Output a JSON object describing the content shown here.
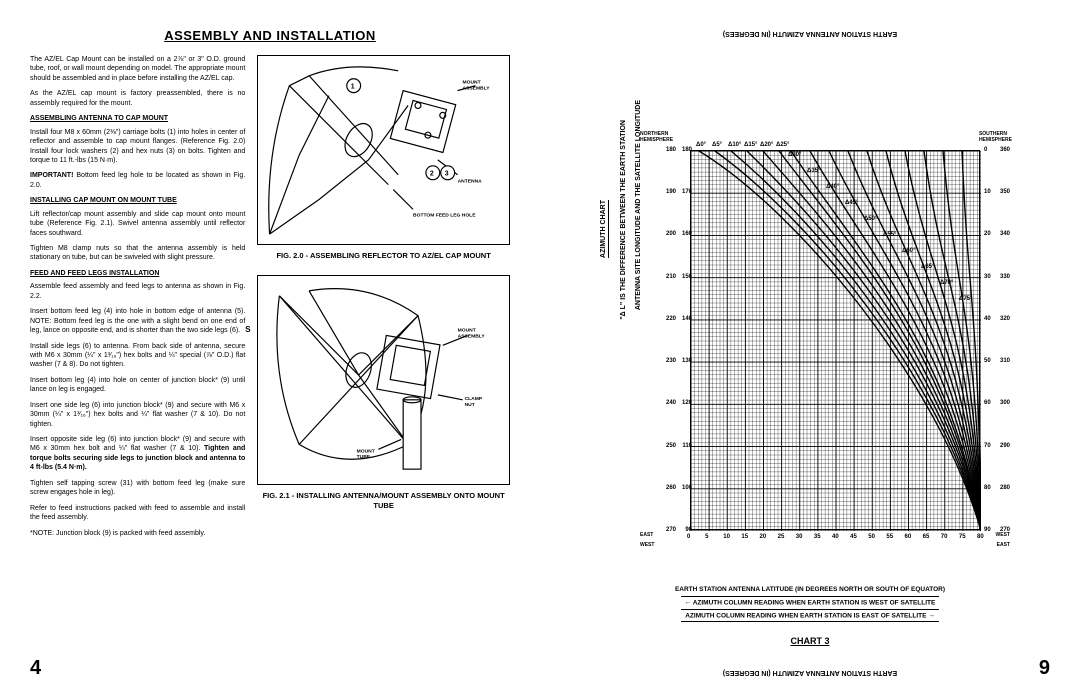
{
  "leftPage": {
    "title": "ASSEMBLY AND INSTALLATION",
    "pageNumber": "4",
    "paragraphs": {
      "intro1": "The AZ/EL Cap Mount can be installed on a 2⅞\" or 3\" O.D. ground tube, roof, or wall mount depending on model. The appropriate mount should be assembled and in place before installing the AZ/EL cap.",
      "intro2": "As the AZ/EL cap mount is factory preassembled, there is no assembly required for the mount.",
      "h1": "ASSEMBLING ANTENNA TO CAP MOUNT",
      "p1": "Install four M8 x 60mm (2⅜\") carriage bolts (1) into holes in center of reflector and assemble to cap mount flanges. (Reference Fig. 2.0) Install four lock washers (2) and hex nuts (3) on bolts. Tighten and torque to 11 ft.-lbs (15 N·m).",
      "important": "IMPORTANT!",
      "importantText": " Bottom feed leg hole to be located as shown in Fig. 2.0.",
      "h2": "INSTALLING CAP MOUNT ON MOUNT TUBE",
      "p2": "Lift reflector/cap mount assembly and slide cap mount onto mount tube (Reference Fig. 2.1). Swivel antenna assembly until reflector faces southward.",
      "p3": "Tighten M8 clamp nuts so that the antenna assembly is held stationary on tube, but can be swiveled with slight pressure.",
      "h3": "FEED AND FEED LEGS INSTALLATION",
      "p4": "Assemble feed assembly and feed legs to antenna as shown in Fig. 2.2.",
      "p5": "Insert bottom feed leg (4) into hole in bottom edge of antenna (5). NOTE: Bottom feed leg is the one with a slight bend on one end of leg, lance on opposite end, and is shorter than the two side legs (6).",
      "p6": "Install side legs (6) to antenna. From back side of antenna, secure with M6 x 30mm (¼\" x 1³⁄₁₆\") hex bolts and ¼\" special (⅞\" O.D.) flat washer (7 & 8). Do not tighten.",
      "p7": "Insert bottom leg (4) into hole on center of junction block* (9) until lance on leg is engaged.",
      "p8": "Insert one side leg (6) into junction block* (9) and secure with M6 x 30mm (¼\" x 1³⁄₁₆\") hex bolts and ¼\" flat washer (7 & 10). Do not tighten.",
      "p9a": "Insert opposite side leg (6) into junction block* (9) and secure with M6 x 30mm hex bolt and ¼\" flat washer (7 & 10). ",
      "p9b": "Tighten and torque bolts securing side legs to junction block and antenna to 4 ft-lbs (5.4 N·m).",
      "p10": "Tighten self tapping screw (31) with bottom feed leg (make sure screw engages hole in leg).",
      "p11": "Refer to feed instructions packed with feed to assemble and install the feed assembly.",
      "note": "*NOTE: Junction block (9) is packed with feed assembly."
    },
    "fig1": {
      "caption": "FIG. 2.0 - ASSEMBLING REFLECTOR TO AZ/EL CAP MOUNT",
      "labels": {
        "mount": "MOUNT ASSEMBLY",
        "antenna": "ANTENNA",
        "feedhole": "BOTTOM FEED LEG HOLE"
      }
    },
    "fig2": {
      "sLabel": "S",
      "caption": "FIG. 2.1 - INSTALLING ANTENNA/MOUNT ASSEMBLY ONTO MOUNT TUBE",
      "labels": {
        "mount": "MOUNT ASSEMBLY",
        "clamp": "CLAMP NUT",
        "tube": "MOUNT TUBE"
      }
    }
  },
  "rightPage": {
    "pageNumber": "9",
    "topFlipped": "EARTH STATION ANTENNA AZIMUTH (IN DEGREES)",
    "bottomFlipped": "EARTH STATION ANTENNA AZIMUTH (IN DEGREES)",
    "northern": "NORTHERN HEMISPHERE",
    "southern": "SOUTHERN HEMISPHERE",
    "azimuthChart": "AZIMUTH CHART",
    "deltaL": "\"Δ L\" IS THE DIFFERENCE BETWEEN THE EARTH STATION",
    "antennaSite": "ANTENNA SITE LONGITUDE AND THE SATELLITE LONGITUDE",
    "xAxisL1": "EARTH STATION ANTENNA LATITUDE (IN DEGREES NORTH OR SOUTH OF EQUATOR)",
    "xAxisL2": "AZIMUTH COLUMN READING WHEN EARTH STATION IS WEST OF SATELLITE",
    "xAxisL3": "AZIMUTH COLUMN READING WHEN EARTH STATION IS EAST OF SATELLITE",
    "chart3": "CHART 3",
    "east": "EAST",
    "west": "WEST",
    "yTicksLeft": [
      "180",
      "190",
      "200",
      "210",
      "220",
      "230",
      "240",
      "250",
      "260",
      "270"
    ],
    "yTicksLeftInner": [
      "180",
      "170",
      "160",
      "150",
      "140",
      "130",
      "120",
      "110",
      "100",
      "90"
    ],
    "yTicksRight": [
      "0",
      "10",
      "20",
      "30",
      "40",
      "50",
      "60",
      "70",
      "80",
      "90"
    ],
    "yTicksRightOuter": [
      "360",
      "350",
      "340",
      "330",
      "320",
      "310",
      "300",
      "290",
      "280",
      "270"
    ],
    "xTicks": [
      "0",
      "5",
      "10",
      "15",
      "20",
      "25",
      "30",
      "35",
      "40",
      "45",
      "50",
      "55",
      "60",
      "65",
      "70",
      "75",
      "80"
    ],
    "curves": [
      "Δ0°",
      "Δ5°",
      "Δ10°",
      "Δ15°",
      "Δ20°",
      "Δ25°",
      "Δ30°",
      "Δ35°",
      "Δ40°",
      "Δ45°",
      "Δ50°",
      "Δ55°",
      "Δ60°",
      "Δ65°",
      "Δ70°",
      "Δ75°"
    ],
    "gridColor": "#000000",
    "bgColor": "#ffffff"
  }
}
